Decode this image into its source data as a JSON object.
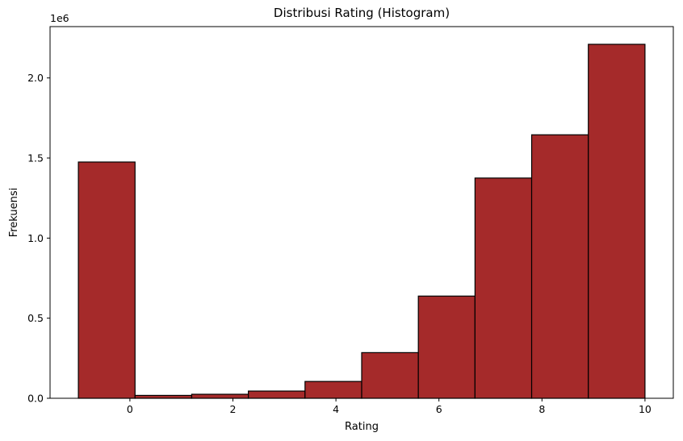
{
  "chart_data": {
    "type": "bar",
    "subtype": "histogram",
    "title": "Distribusi Rating (Histogram)",
    "xlabel": "Rating",
    "ylabel": "Frekuensi",
    "y_scale_label": "1e6",
    "bin_edges": [
      -1,
      0.1,
      1.2,
      2.3,
      3.4,
      4.5,
      5.6,
      6.7,
      7.8,
      8.9,
      10
    ],
    "values": [
      1475000,
      18000,
      25000,
      45000,
      105000,
      285000,
      638000,
      1375000,
      1645000,
      2210000
    ],
    "xlim": [
      -1.55,
      10.55
    ],
    "ylim": [
      0,
      2320500
    ],
    "xticks": [
      0,
      2,
      4,
      6,
      8,
      10
    ],
    "xtick_labels": [
      "0",
      "2",
      "4",
      "6",
      "8",
      "10"
    ],
    "yticks": [
      0,
      500000,
      1000000,
      1500000,
      2000000
    ],
    "ytick_labels": [
      "0.0",
      "0.5",
      "1.0",
      "1.5",
      "2.0"
    ],
    "grid": false,
    "bar_color": "#a52a2a",
    "edge_color": "#000000"
  }
}
